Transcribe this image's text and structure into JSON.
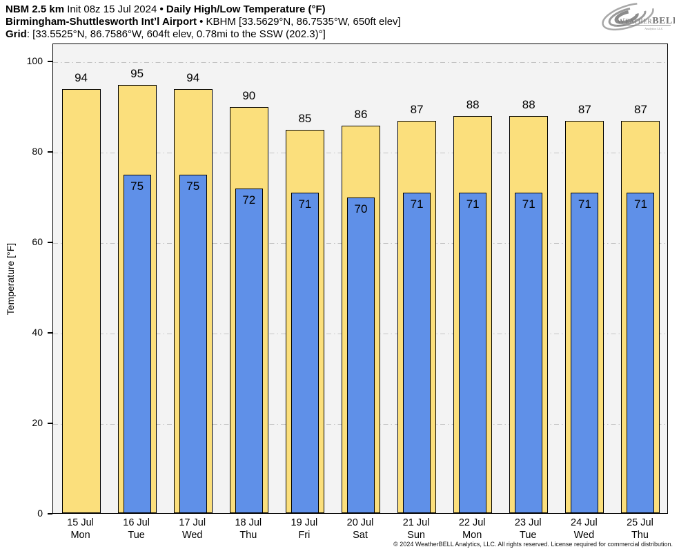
{
  "header": {
    "line1": {
      "model": "NBM 2.5 km",
      "init": " Init 08z 15 Jul 2024 ",
      "sep": "•",
      "product": " Daily High/Low Temperature (°F)"
    },
    "line2": {
      "station": "Birmingham-Shuttlesworth Intʼl Airport ",
      "sep": "•",
      "details": " KBHM [33.5629°N, 86.7535°W, 650ft elev]"
    },
    "line3": {
      "label": "Grid",
      "details": ": [33.5525°N, 86.7586°W, 604ft elev, 0.78mi to the SSW (202.3)°]"
    }
  },
  "logo": {
    "brand_weather": "Weather",
    "brand_bell": "BELL",
    "subtext": "Analytics LLC"
  },
  "chart_data": {
    "type": "bar",
    "title": "Daily High/Low Temperature (°F)",
    "ylabel": "Temperature [°F]",
    "ylim": [
      0,
      104
    ],
    "yticks": [
      0,
      20,
      40,
      60,
      80,
      100
    ],
    "grid": "horizontal dash-dot lines at each y tick, light gray",
    "legend_position": "none",
    "categories_date": [
      "15 Jul",
      "16 Jul",
      "17 Jul",
      "18 Jul",
      "19 Jul",
      "20 Jul",
      "21 Jul",
      "22 Jul",
      "23 Jul",
      "24 Jul",
      "25 Jul"
    ],
    "categories_day": [
      "Mon",
      "Tue",
      "Wed",
      "Thu",
      "Fri",
      "Sat",
      "Sun",
      "Mon",
      "Tue",
      "Wed",
      "Thu"
    ],
    "series": [
      {
        "name": "High",
        "color": "#FBDF7C",
        "values": [
          94,
          95,
          94,
          90,
          85,
          86,
          87,
          88,
          88,
          87,
          87
        ]
      },
      {
        "name": "Low",
        "color": "#5F90E8",
        "values": [
          null,
          75,
          75,
          72,
          71,
          70,
          71,
          71,
          71,
          71,
          71
        ]
      }
    ]
  },
  "colors": {
    "plot_background": "#f3f3f3",
    "page_background": "#ffffff",
    "gridline": "#c3c3c3",
    "bar_outline": "#000000",
    "high_bar": "#FBDF7C",
    "low_bar": "#5F90E8",
    "logo_gray": "#8e8e8e"
  },
  "footer": {
    "copyright": "© 2024 WeatherBELL Analytics, LLC. All rights reserved. License required for commercial distribution."
  }
}
